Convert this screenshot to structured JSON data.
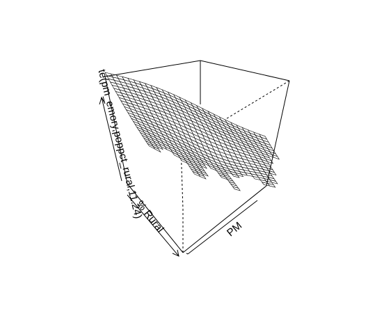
{
  "chart_data": {
    "type": "surface",
    "xlabel": "PM",
    "ylabel": "% Rural",
    "zlabel": "te(pm_emory,poppct_rural,11.24)",
    "grid_x": 28,
    "grid_y": 28,
    "colors": {
      "line": "#000000",
      "surface_fill": "#ffffff",
      "background": "#ffffff"
    }
  }
}
